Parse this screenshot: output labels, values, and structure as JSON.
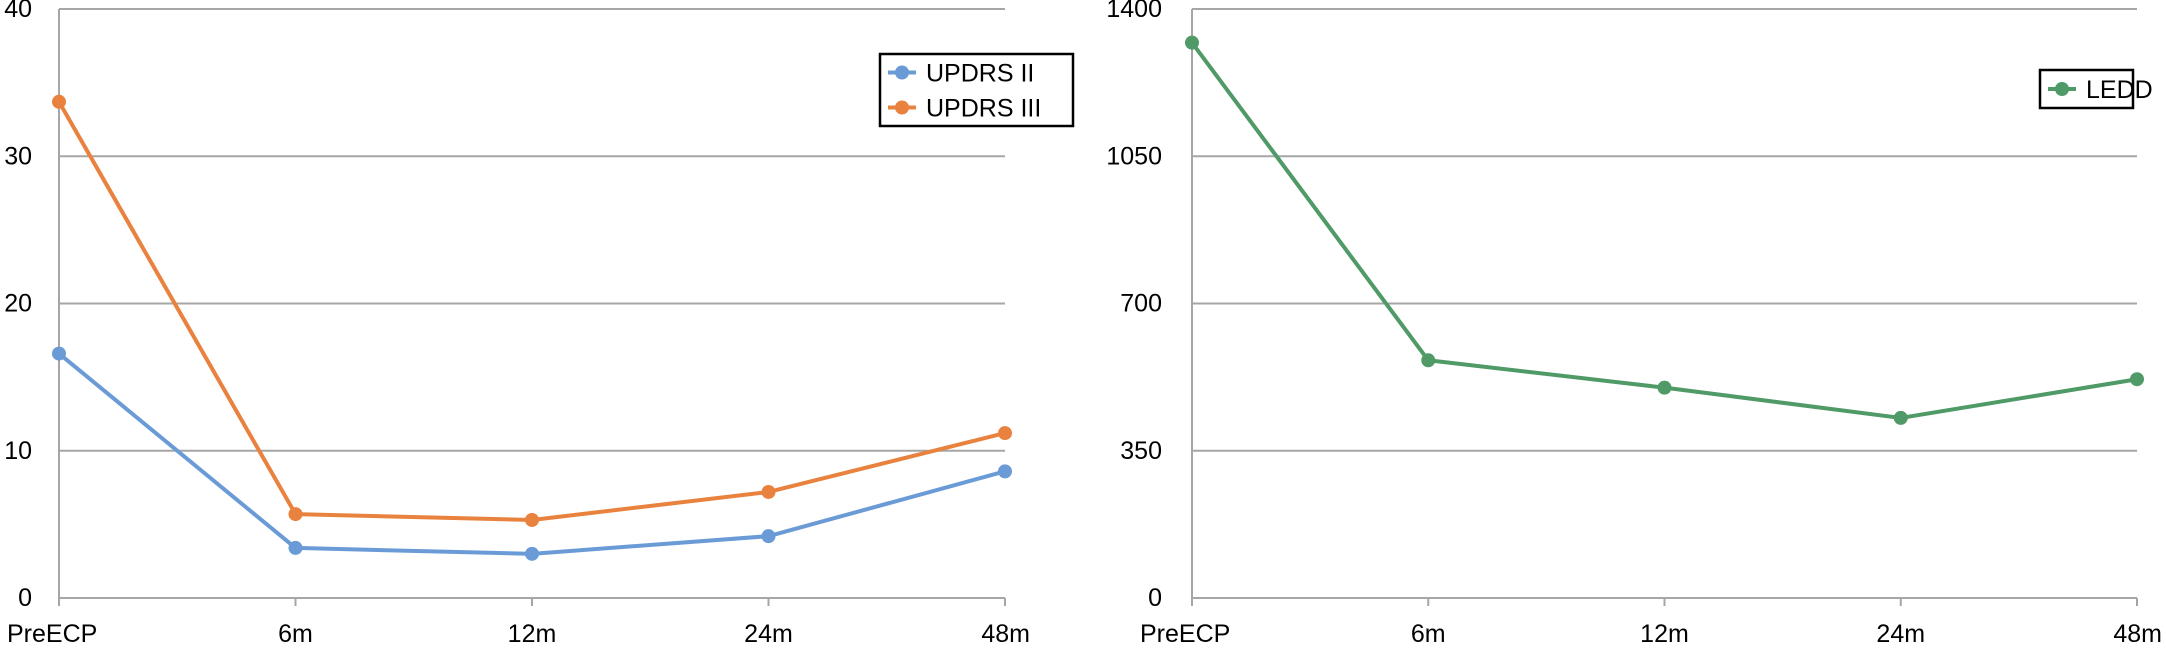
{
  "chart_data": [
    {
      "type": "line",
      "categories": [
        "PreECP",
        "6m",
        "12m",
        "24m",
        "48m"
      ],
      "ylim": [
        0,
        40
      ],
      "yticks": [
        0,
        10,
        20,
        30,
        40
      ],
      "grid": true,
      "legend_position": "top-right",
      "series": [
        {
          "name": "UPDRS II",
          "color": "#6a9bd6",
          "values": [
            16.6,
            3.4,
            3.0,
            4.2,
            8.6
          ]
        },
        {
          "name": "UPDRS III",
          "color": "#e8823e",
          "values": [
            33.7,
            5.7,
            5.3,
            7.2,
            11.2
          ]
        }
      ]
    },
    {
      "type": "line",
      "categories": [
        "PreECP",
        "6m",
        "12m",
        "24m",
        "48m"
      ],
      "ylim": [
        0,
        1400
      ],
      "yticks": [
        0,
        350,
        700,
        1050,
        1400
      ],
      "grid": true,
      "legend_position": "top-right",
      "series": [
        {
          "name": "LEDD",
          "color": "#4f9a66",
          "values": [
            1320,
            565,
            500,
            428,
            520
          ]
        }
      ]
    }
  ]
}
